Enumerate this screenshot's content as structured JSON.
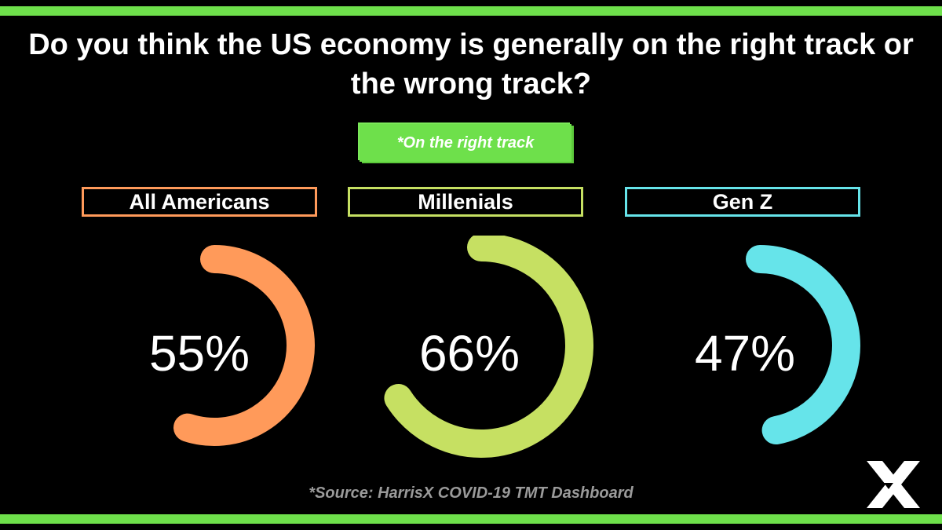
{
  "colors": {
    "accent": "#6ee04b",
    "all_americans": "#ff9a5a",
    "millenials": "#c6e062",
    "gen_z": "#66e4ea"
  },
  "chart_data": {
    "type": "donut",
    "title": "Do you think the US economy is generally on the right track or the wrong track?",
    "subtitle": "*On the right track",
    "series": [
      {
        "name": "All Americans",
        "value": 55,
        "label": "55%",
        "color": "#ff9a5a"
      },
      {
        "name": "Millenials",
        "value": 66,
        "label": "66%",
        "color": "#c6e062"
      },
      {
        "name": "Gen Z",
        "value": 47,
        "label": "47%",
        "color": "#66e4ea"
      }
    ],
    "source": "*Source: HarrisX COVID-19 TMT Dashboard"
  },
  "logo": {
    "icon": "x-logo-icon"
  }
}
